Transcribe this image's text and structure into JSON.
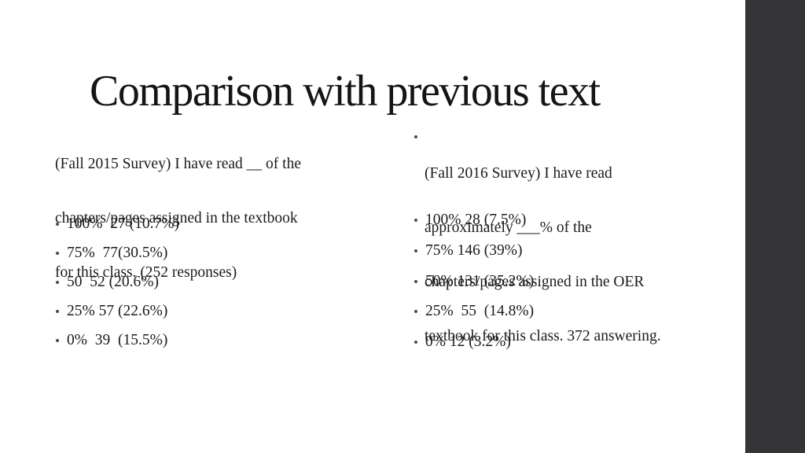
{
  "slide": {
    "title": "Comparison with previous text",
    "left_column": {
      "header_lines": [
        "(Fall 2015 Survey) I have read __ of the",
        "chapters/pages assigned in the textbook",
        "for this class. (252 responses)"
      ],
      "items": [
        "100%  27 (10.7%)",
        "75%  77(30.5%)",
        "50  52 (20.6%)",
        "25% 57 (22.6%)",
        "0%  39  (15.5%)"
      ]
    },
    "right_column": {
      "header_lines": [
        "(Fall 2016 Survey) I have read",
        "approximately ___% of the",
        "chapters/pages assigned in the OER",
        "textbook for this class. 372 answering."
      ],
      "items": [
        "100% 28 (7.5%)",
        "75% 146 (39%)",
        "50% 131 (35.2%)",
        "25%  55  (14.8%)",
        "0% 12 (3.2%)"
      ]
    },
    "colors": {
      "background": "#ffffff",
      "text": "#1b1b1b",
      "side_bar": "#353438",
      "bullet": "#4a4a4a"
    }
  }
}
